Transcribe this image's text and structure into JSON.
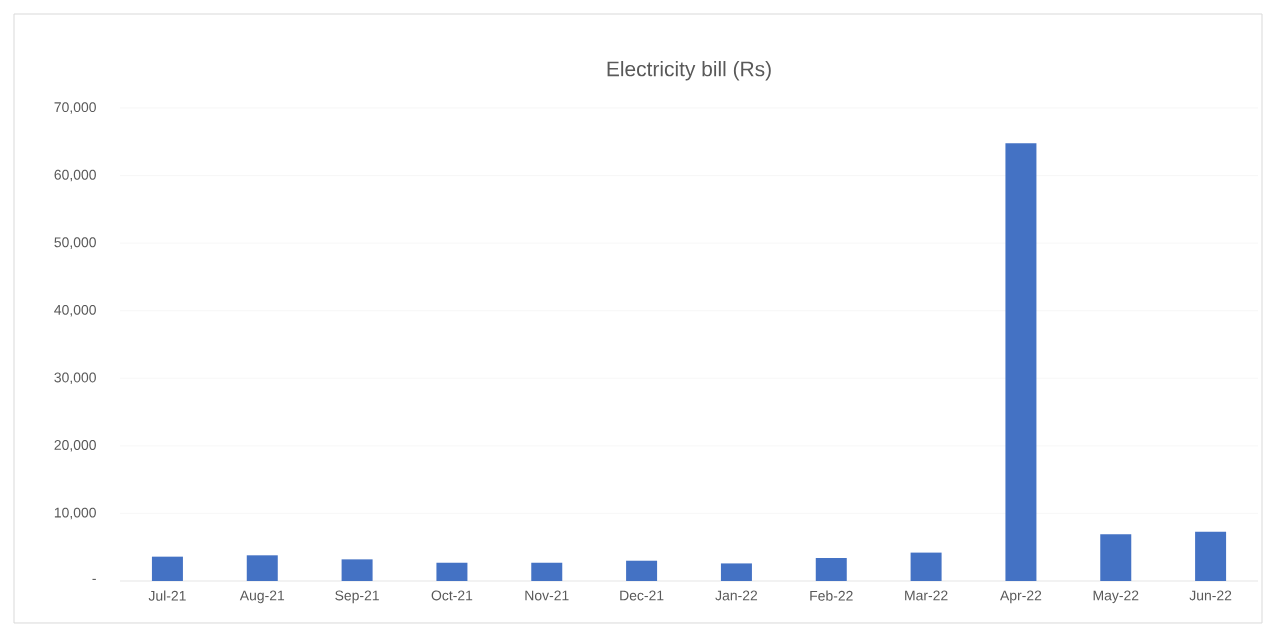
{
  "chart_data": {
    "type": "bar",
    "title": "Electricity bill (Rs)",
    "categories": [
      "Jul-21",
      "Aug-21",
      "Sep-21",
      "Oct-21",
      "Nov-21",
      "Dec-21",
      "Jan-22",
      "Feb-22",
      "Mar-22",
      "Apr-22",
      "May-22",
      "Jun-22"
    ],
    "values": [
      3600,
      3800,
      3200,
      2700,
      2700,
      3000,
      2600,
      3400,
      4200,
      64800,
      6900,
      7300
    ],
    "color": "#4472c4",
    "ylim": [
      0,
      70000
    ],
    "yticks": [
      {
        "value": 0,
        "label": "-"
      },
      {
        "value": 10000,
        "label": "10,000"
      },
      {
        "value": 20000,
        "label": "20,000"
      },
      {
        "value": 30000,
        "label": "30,000"
      },
      {
        "value": 40000,
        "label": "40,000"
      },
      {
        "value": 50000,
        "label": "50,000"
      },
      {
        "value": 60000,
        "label": "60,000"
      },
      {
        "value": 70000,
        "label": "70,000"
      }
    ],
    "grid": "y"
  }
}
